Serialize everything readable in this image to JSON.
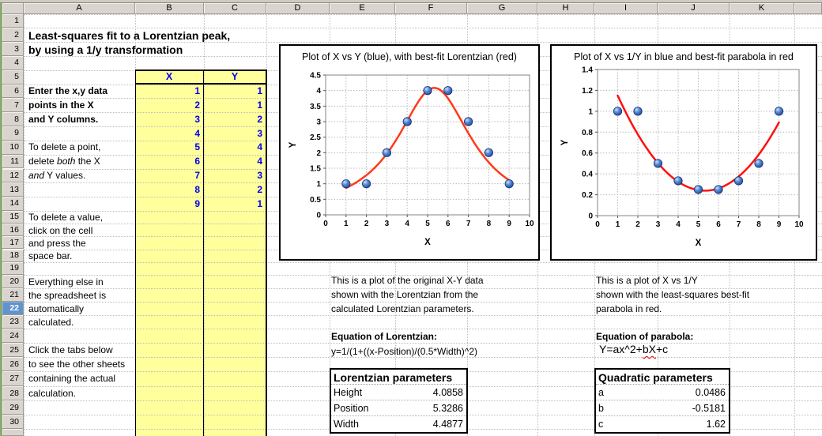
{
  "grid": {
    "column_headers": [
      "A",
      "B",
      "C",
      "D",
      "E",
      "F",
      "G",
      "H",
      "I",
      "J",
      "K",
      ""
    ],
    "row_count": 30,
    "active_row": "22"
  },
  "doc": {
    "title1": "Least-squares fit to a Lorentzian peak,",
    "title2": "by using a 1/y transformation"
  },
  "left_notes": [
    {
      "row": 6,
      "style": "blue",
      "segments": [
        {
          "t": "Enter the x,y data"
        }
      ]
    },
    {
      "row": 7,
      "style": "blue",
      "segments": [
        {
          "t": "points in the X"
        }
      ]
    },
    {
      "row": 8,
      "style": "blue",
      "segments": [
        {
          "t": "and Y columns."
        }
      ]
    },
    {
      "row": 10,
      "style": "plain",
      "segments": [
        {
          "t": "To delete a point,"
        }
      ]
    },
    {
      "row": 11,
      "style": "plain",
      "segments": [
        {
          "t": "delete "
        },
        {
          "t": "both",
          "i": true
        },
        {
          "t": " the X"
        }
      ]
    },
    {
      "row": 12,
      "style": "plain",
      "segments": [
        {
          "t": "and",
          "i": true
        },
        {
          "t": " Y values."
        }
      ]
    },
    {
      "row": 15,
      "style": "plain",
      "segments": [
        {
          "t": "To delete a value,"
        }
      ]
    },
    {
      "row": 16,
      "style": "plain",
      "segments": [
        {
          "t": "click on the cell"
        }
      ]
    },
    {
      "row": 17,
      "style": "plain",
      "segments": [
        {
          "t": "and press the"
        }
      ]
    },
    {
      "row": 18,
      "style": "plain",
      "segments": [
        {
          "t": "space bar."
        }
      ]
    },
    {
      "row": 20,
      "style": "plain",
      "segments": [
        {
          "t": "Everything else in"
        }
      ]
    },
    {
      "row": 21,
      "style": "plain",
      "segments": [
        {
          "t": "the spreadsheet is"
        }
      ]
    },
    {
      "row": 22,
      "style": "plain",
      "segments": [
        {
          "t": "automatically"
        }
      ]
    },
    {
      "row": 23,
      "style": "plain",
      "segments": [
        {
          "t": "calculated."
        }
      ]
    },
    {
      "row": 25,
      "style": "plain",
      "segments": [
        {
          "t": "Click the tabs below"
        }
      ]
    },
    {
      "row": 26,
      "style": "plain",
      "segments": [
        {
          "t": "to see the other sheets"
        }
      ]
    },
    {
      "row": 27,
      "style": "plain",
      "segments": [
        {
          "t": "containing the actual"
        }
      ]
    },
    {
      "row": 28,
      "style": "plain",
      "segments": [
        {
          "t": "calculation."
        }
      ]
    }
  ],
  "data_table": {
    "x_header": "X",
    "y_header": "Y",
    "x": [
      1,
      2,
      3,
      4,
      5,
      6,
      7,
      8,
      9
    ],
    "y": [
      1,
      1,
      2,
      3,
      4,
      4,
      3,
      2,
      1
    ]
  },
  "chart_data": [
    {
      "type": "scatter",
      "title": "Plot of X vs Y (blue), with best-fit Lorentzian (red)",
      "xlabel": "X",
      "ylabel": "Y",
      "xlim": [
        0,
        10
      ],
      "ylim": [
        0,
        4.5
      ],
      "xticks": [
        0,
        1,
        2,
        3,
        4,
        5,
        6,
        7,
        8,
        9,
        10
      ],
      "yticks": [
        0,
        0.5,
        1,
        1.5,
        2,
        2.5,
        3,
        3.5,
        4,
        4.5
      ],
      "grid": true,
      "legend_position": "none",
      "points_x": [
        1,
        2,
        3,
        4,
        5,
        6,
        7,
        8,
        9
      ],
      "points_y": [
        1,
        1,
        2,
        3,
        4,
        4,
        3,
        2,
        1
      ],
      "fit": {
        "model": "lorentzian",
        "height": 4.0858,
        "position": 5.3286,
        "width": 4.4877,
        "x_start": 1,
        "x_end": 9
      },
      "marker_color": "#3566C2",
      "fit_color": "#FF3A1A"
    },
    {
      "type": "scatter",
      "title": "Plot of X vs 1/Y in blue and best-fit parabola in red",
      "xlabel": "X",
      "ylabel": "Y",
      "xlim": [
        0,
        10
      ],
      "ylim": [
        0,
        1.4
      ],
      "xticks": [
        0,
        1,
        2,
        3,
        4,
        5,
        6,
        7,
        8,
        9,
        10
      ],
      "yticks": [
        0,
        0.2,
        0.4,
        0.6,
        0.8,
        1,
        1.2,
        1.4
      ],
      "grid": true,
      "legend_position": "none",
      "points_x": [
        1,
        2,
        3,
        4,
        5,
        6,
        7,
        8,
        9
      ],
      "points_y": [
        1,
        1,
        0.5,
        0.3333,
        0.25,
        0.25,
        0.3333,
        0.5,
        1
      ],
      "fit": {
        "model": "parabola",
        "a": 0.0486,
        "b": -0.5181,
        "c": 1.62,
        "x_start": 1,
        "x_end": 9
      },
      "marker_color": "#3566C2",
      "fit_color": "#FF0F0F"
    }
  ],
  "center_notes": {
    "lines": [
      "This is a plot of the original X-Y data",
      "shown with the Lorentzian from the",
      "calculated Lorentzian parameters."
    ],
    "eq_title": "Equation of Lorentzian:",
    "equation": "y=1/(1+((x-Position)/(0.5*Width)^2)"
  },
  "right_notes": {
    "lines": [
      "This is a plot of X vs 1/Y",
      "shown with the least-squares best-fit",
      "parabola in red."
    ],
    "eq_title": "Equation of parabola:",
    "equation_pre": "Y=ax^2+",
    "equation_wavy": "bX",
    "equation_post": "+c"
  },
  "param_tables": {
    "lorentzian": {
      "title": "Lorentzian parameters",
      "rows": [
        {
          "label": "Height",
          "value": "4.0858"
        },
        {
          "label": "Position",
          "value": "5.3286"
        },
        {
          "label": "Width",
          "value": "4.4877"
        }
      ]
    },
    "quadratic": {
      "title": "Quadratic parameters",
      "rows": [
        {
          "label": "a",
          "value": "0.0486"
        },
        {
          "label": "b",
          "value": "-0.5181"
        },
        {
          "label": "c",
          "value": "1.62"
        }
      ]
    }
  }
}
